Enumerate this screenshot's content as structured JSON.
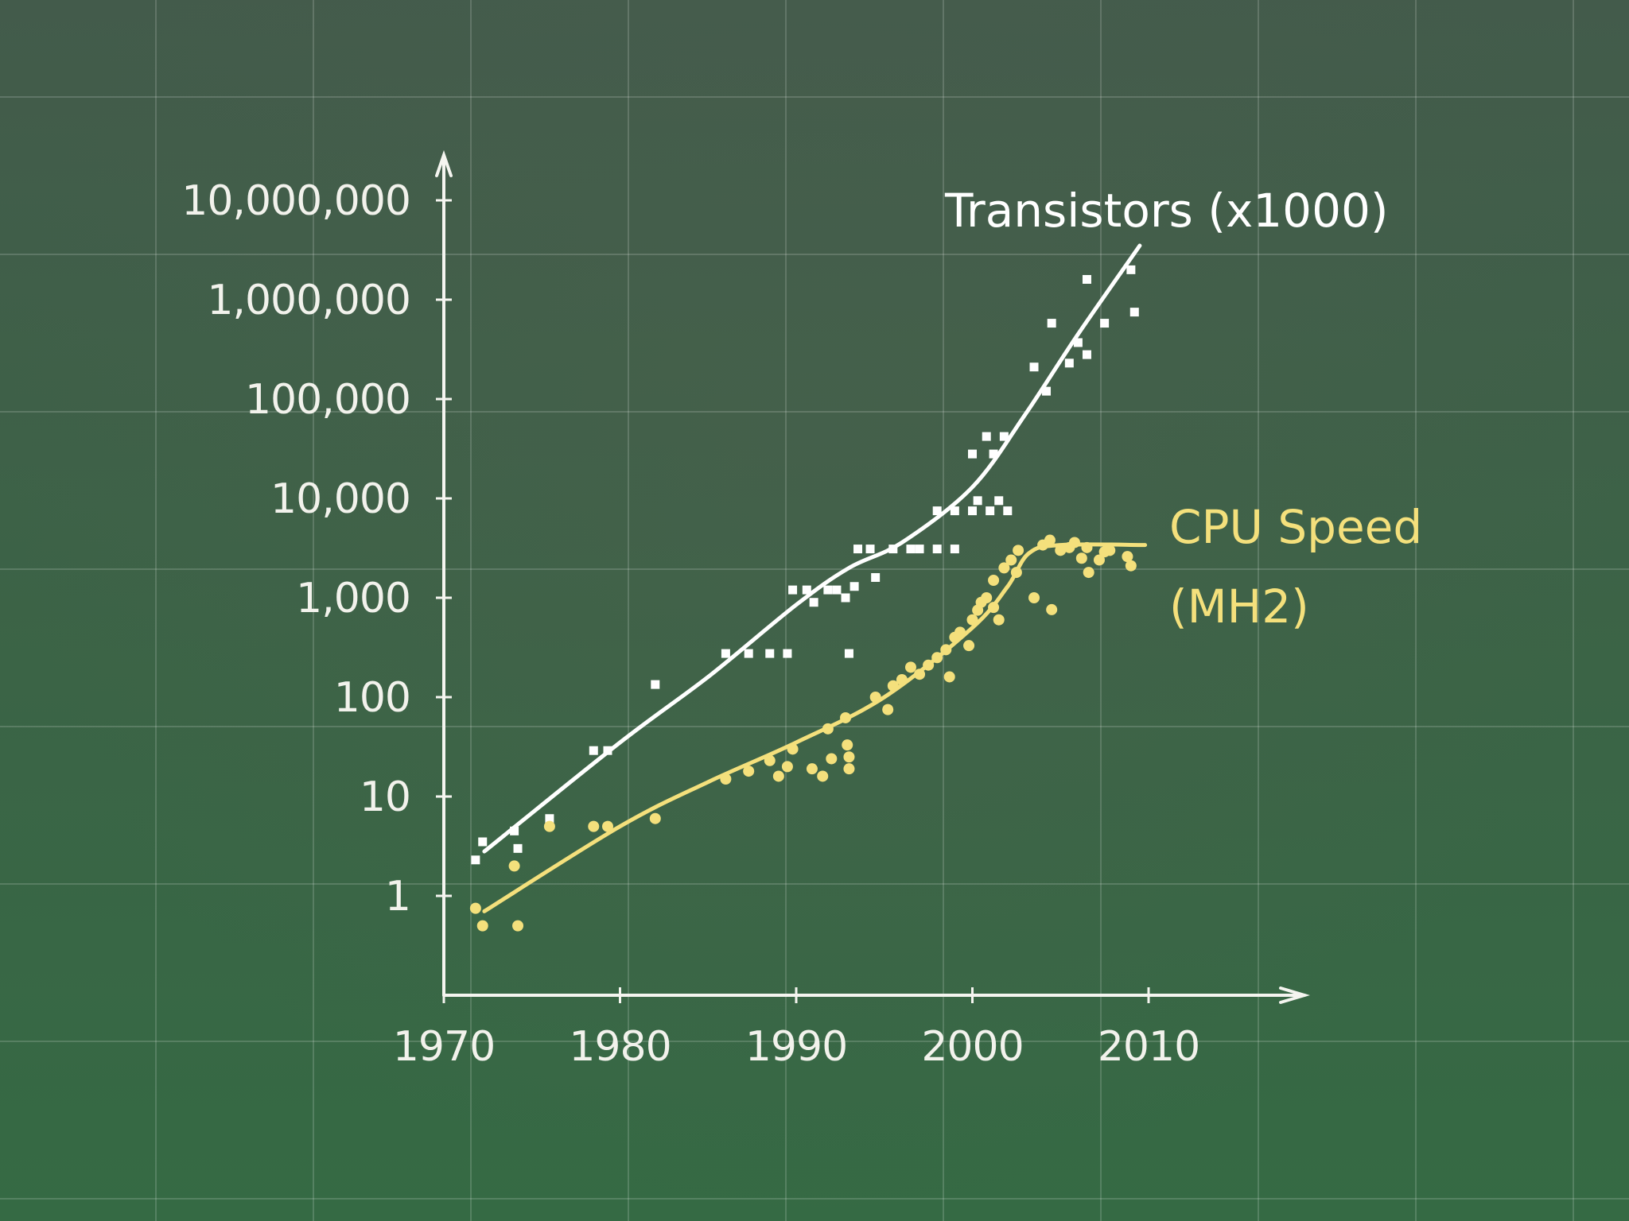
{
  "chart_data": {
    "type": "scatter",
    "title": "",
    "xlabel": "",
    "ylabel": "",
    "x_scale": "linear",
    "y_scale": "log",
    "xlim": [
      1970,
      2017
    ],
    "ylim": [
      0.1,
      10000000
    ],
    "grid": true,
    "x_ticks": [
      {
        "value": 1970,
        "label": "1970"
      },
      {
        "value": 1980,
        "label": "1980"
      },
      {
        "value": 1990,
        "label": "1990"
      },
      {
        "value": 2000,
        "label": "2000"
      },
      {
        "value": 2010,
        "label": "2010"
      }
    ],
    "y_ticks": [
      {
        "value": 1,
        "label": "1"
      },
      {
        "value": 10,
        "label": "10"
      },
      {
        "value": 100,
        "label": "100"
      },
      {
        "value": 1000,
        "label": "1,000"
      },
      {
        "value": 10000,
        "label": "10,000"
      },
      {
        "value": 100000,
        "label": "100,000"
      },
      {
        "value": 1000000,
        "label": "1,000,000"
      },
      {
        "value": 10000000,
        "label": "10,000,000"
      }
    ],
    "series": [
      {
        "name": "Transistors (x1000)",
        "label_lines": [
          "Transistors (x1000)"
        ],
        "color": "#ffffff",
        "marker": "square",
        "points": [
          [
            1971.8,
            2.3
          ],
          [
            1972.2,
            3.5
          ],
          [
            1974,
            4.5
          ],
          [
            1974.2,
            3
          ],
          [
            1976,
            6
          ],
          [
            1978.5,
            29
          ],
          [
            1979.3,
            29
          ],
          [
            1982,
            134
          ],
          [
            1986,
            275
          ],
          [
            1987.3,
            275
          ],
          [
            1988.5,
            275
          ],
          [
            1989.5,
            275
          ],
          [
            1989.8,
            1200
          ],
          [
            1990.6,
            1200
          ],
          [
            1991,
            900
          ],
          [
            1991.8,
            1200
          ],
          [
            1992.3,
            1200
          ],
          [
            1992.8,
            1000
          ],
          [
            1993.3,
            1300
          ],
          [
            1993,
            275
          ],
          [
            1993.5,
            3100
          ],
          [
            1994.2,
            3100
          ],
          [
            1994.5,
            1600
          ],
          [
            1995.5,
            3100
          ],
          [
            1996.5,
            3100
          ],
          [
            1997,
            3100
          ],
          [
            1998,
            3100
          ],
          [
            1999,
            3100
          ],
          [
            1998,
            7500
          ],
          [
            1999,
            7500
          ],
          [
            2000,
            7500
          ],
          [
            2001,
            7500
          ],
          [
            2002,
            7500
          ],
          [
            2000.3,
            9500
          ],
          [
            2001.5,
            9500
          ],
          [
            2000,
            28000
          ],
          [
            2001.2,
            28000
          ],
          [
            2000.8,
            42000
          ],
          [
            2001.8,
            42000
          ],
          [
            2003.5,
            210000
          ],
          [
            2004.2,
            120000
          ],
          [
            2004.5,
            580000
          ],
          [
            2005.5,
            230000
          ],
          [
            2006,
            370000
          ],
          [
            2006.5,
            280000
          ],
          [
            2007.5,
            580000
          ],
          [
            2006.5,
            1600000
          ],
          [
            2009,
            2000000
          ],
          [
            2009.2,
            750000
          ]
        ],
        "trend": [
          [
            1972.3,
            2.8
          ],
          [
            1980,
            35
          ],
          [
            1985,
            160
          ],
          [
            1990,
            850
          ],
          [
            1993,
            2000
          ],
          [
            1996,
            3600
          ],
          [
            2000,
            13000
          ],
          [
            2003,
            70000
          ],
          [
            2006,
            450000
          ],
          [
            2009.5,
            3500000
          ]
        ]
      },
      {
        "name": "CPU Speed (MHz)",
        "label_lines": [
          "CPU Speed",
          "(MH2)"
        ],
        "color": "#f4e07c",
        "marker": "circle",
        "points": [
          [
            1971.8,
            0.75
          ],
          [
            1972.2,
            0.5
          ],
          [
            1974,
            2
          ],
          [
            1974.2,
            0.5
          ],
          [
            1976,
            5
          ],
          [
            1978.5,
            5
          ],
          [
            1979.3,
            5
          ],
          [
            1982,
            6
          ],
          [
            1986,
            15
          ],
          [
            1987.3,
            18
          ],
          [
            1988.5,
            23
          ],
          [
            1989,
            16
          ],
          [
            1989.5,
            20
          ],
          [
            1989.8,
            30
          ],
          [
            1990.9,
            19
          ],
          [
            1991.5,
            16
          ],
          [
            1991.8,
            48
          ],
          [
            1992,
            24
          ],
          [
            1992.8,
            62
          ],
          [
            1992.9,
            33
          ],
          [
            1993,
            25
          ],
          [
            1993,
            19
          ],
          [
            1994.5,
            100
          ],
          [
            1995.2,
            75
          ],
          [
            1995.5,
            130
          ],
          [
            1996,
            150
          ],
          [
            1996.5,
            200
          ],
          [
            1997,
            170
          ],
          [
            1997.5,
            210
          ],
          [
            1998,
            250
          ],
          [
            1998.5,
            300
          ],
          [
            1998.7,
            160
          ],
          [
            1999,
            400
          ],
          [
            1999.3,
            450
          ],
          [
            1999.8,
            330
          ],
          [
            2000,
            600
          ],
          [
            2000.3,
            750
          ],
          [
            2000.5,
            900
          ],
          [
            2000.8,
            1000
          ],
          [
            2001.2,
            800
          ],
          [
            2001.2,
            1500
          ],
          [
            2001.5,
            600
          ],
          [
            2001.8,
            2000
          ],
          [
            2002.2,
            2400
          ],
          [
            2002.5,
            1800
          ],
          [
            2002.6,
            3000
          ],
          [
            2003.5,
            1000
          ],
          [
            2004,
            3400
          ],
          [
            2004.4,
            3800
          ],
          [
            2004.5,
            760
          ],
          [
            2005,
            3000
          ],
          [
            2005.5,
            3200
          ],
          [
            2005.8,
            3600
          ],
          [
            2006.2,
            2500
          ],
          [
            2006.5,
            3200
          ],
          [
            2006.6,
            1800
          ],
          [
            2007.2,
            2400
          ],
          [
            2007.5,
            2900
          ],
          [
            2007.8,
            3000
          ],
          [
            2008.8,
            2600
          ],
          [
            2009,
            2100
          ]
        ],
        "trend": [
          [
            1972.3,
            0.7
          ],
          [
            1980,
            5
          ],
          [
            1985,
            14
          ],
          [
            1990,
            35
          ],
          [
            1995,
            100
          ],
          [
            2000,
            500
          ],
          [
            2002,
            1300
          ],
          [
            2003.2,
            2800
          ],
          [
            2005,
            3400
          ],
          [
            2009.8,
            3400
          ]
        ]
      }
    ]
  }
}
